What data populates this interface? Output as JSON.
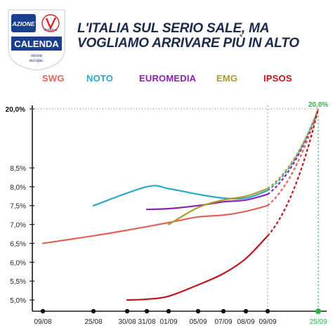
{
  "logo": {
    "azione": "AZIONE",
    "italia_viva": "italiaviva",
    "name": "CALENDA",
    "tagline_1": "renew",
    "tagline_2": "europe.",
    "colors": {
      "navy": "#1b3f8f",
      "red": "#d8232a",
      "green": "#1a9a3a"
    }
  },
  "headline": {
    "line1": "L'ITALIA SUL SERIO SALE, MA",
    "line2": "VOGLIAMO ARRIVARE PIÙ IN ALTO"
  },
  "legend": [
    {
      "name": "SWG",
      "color": "#e0645a"
    },
    {
      "name": "NOTO",
      "color": "#2aa8c4"
    },
    {
      "name": "EUROMEDIA",
      "color": "#8b22b0"
    },
    {
      "name": "EMG",
      "color": "#b09a2a"
    },
    {
      "name": "IPSOS",
      "color": "#c0141c"
    }
  ],
  "chart_data": {
    "type": "line",
    "title": "",
    "xlabel": "",
    "ylabel": "",
    "x_ticks": [
      "09/08",
      "25/08",
      "30/08",
      "31/08",
      "01/09",
      "05/09",
      "07/09",
      "08/09",
      "09/09",
      "25/09"
    ],
    "y_ticks": [
      "5,0%",
      "5,5%",
      "6,0%",
      "6,5%",
      "7,0%",
      "7,5%",
      "8,0%",
      "8,5%",
      "20,0%"
    ],
    "ylim": [
      5.0,
      20.0
    ],
    "axis_break": "between 8.5% and 20.0%",
    "target": {
      "label": "20,0%",
      "date": "25/09",
      "color": "#2db34a"
    },
    "dashed_projection_from": "09/09",
    "grid": false,
    "legend_position": "top",
    "series": [
      {
        "name": "SWG",
        "color": "#e0645a",
        "points": [
          [
            "09/08",
            6.5
          ],
          [
            "25/08",
            6.7
          ],
          [
            "30/08",
            6.85
          ],
          [
            "01/09",
            7.05
          ],
          [
            "05/09",
            7.2
          ],
          [
            "07/09",
            7.25
          ],
          [
            "08/09",
            7.35
          ],
          [
            "09/09",
            7.5
          ]
        ],
        "projection": [
          [
            "09/09",
            7.5
          ],
          [
            "25/09",
            20.0
          ]
        ]
      },
      {
        "name": "NOTO",
        "color": "#2aa8c4",
        "points": [
          [
            "25/08",
            7.5
          ],
          [
            "31/08",
            8.0
          ],
          [
            "01/09",
            7.95
          ],
          [
            "05/09",
            7.8
          ],
          [
            "07/09",
            7.7
          ],
          [
            "08/09",
            7.7
          ],
          [
            "09/09",
            7.9
          ]
        ],
        "projection": [
          [
            "09/09",
            7.9
          ],
          [
            "25/09",
            20.0
          ]
        ]
      },
      {
        "name": "EUROMEDIA",
        "color": "#8b22b0",
        "points": [
          [
            "31/08",
            7.4
          ],
          [
            "01/09",
            7.42
          ],
          [
            "05/09",
            7.5
          ],
          [
            "07/09",
            7.6
          ],
          [
            "08/09",
            7.65
          ],
          [
            "09/09",
            7.8
          ]
        ],
        "projection": [
          [
            "09/09",
            7.8
          ],
          [
            "25/09",
            20.0
          ]
        ]
      },
      {
        "name": "EMG",
        "color": "#b09a2a",
        "points": [
          [
            "01/09",
            7.0
          ],
          [
            "05/09",
            7.45
          ],
          [
            "07/09",
            7.65
          ],
          [
            "08/09",
            7.75
          ],
          [
            "09/09",
            7.95
          ]
        ],
        "projection": [
          [
            "09/09",
            7.95
          ],
          [
            "25/09",
            20.0
          ]
        ]
      },
      {
        "name": "IPSOS",
        "color": "#c0141c",
        "points": [
          [
            "30/08",
            5.0
          ],
          [
            "31/08",
            5.02
          ],
          [
            "01/09",
            5.1
          ],
          [
            "05/09",
            5.4
          ],
          [
            "07/09",
            5.7
          ],
          [
            "08/09",
            6.1
          ],
          [
            "09/09",
            6.7
          ]
        ],
        "projection": [
          [
            "09/09",
            6.7
          ],
          [
            "25/09",
            20.0
          ]
        ]
      }
    ]
  }
}
